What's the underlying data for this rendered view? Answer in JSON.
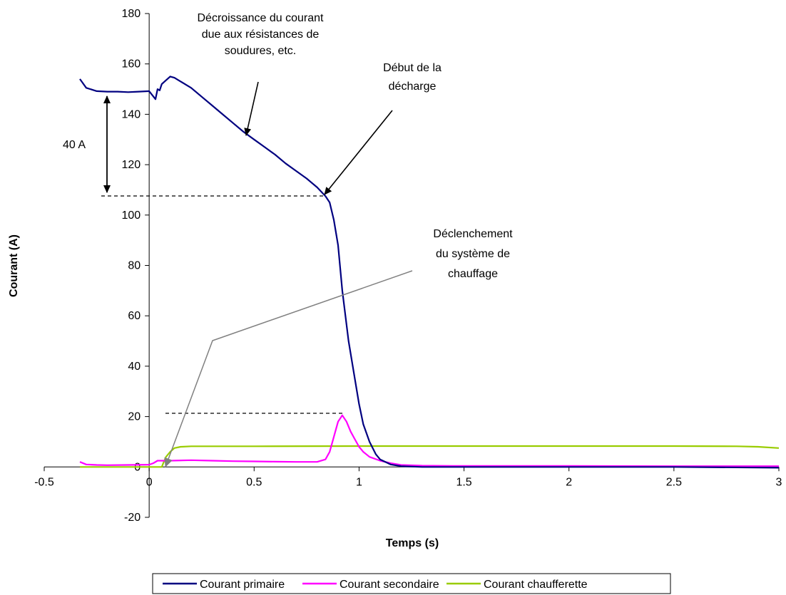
{
  "chart_data": {
    "type": "line",
    "title": "",
    "xlabel": "Temps (s)",
    "ylabel": "Courant (A)",
    "xlim": [
      -0.5,
      3
    ],
    "ylim": [
      -20,
      180
    ],
    "xticks": [
      -0.5,
      0,
      0.5,
      1,
      1.5,
      2,
      2.5,
      3
    ],
    "xtick_labels": [
      "-0.5",
      "0",
      "0.5",
      "1",
      "1.5",
      "2",
      "2.5",
      "3"
    ],
    "yticks": [
      -20,
      0,
      20,
      40,
      60,
      80,
      100,
      120,
      140,
      160,
      180
    ],
    "ytick_labels": [
      "-20",
      "0",
      "20",
      "40",
      "60",
      "80",
      "100",
      "120",
      "140",
      "160",
      "180"
    ],
    "grid": false,
    "legend_position": "bottom",
    "series": [
      {
        "name": "Courant primaire",
        "color": "#000080",
        "x": [
          -0.33,
          -0.3,
          -0.25,
          -0.2,
          -0.15,
          -0.1,
          -0.05,
          0.0,
          0.03,
          0.04,
          0.05,
          0.06,
          0.08,
          0.1,
          0.12,
          0.15,
          0.2,
          0.25,
          0.3,
          0.35,
          0.4,
          0.45,
          0.5,
          0.55,
          0.6,
          0.65,
          0.7,
          0.75,
          0.8,
          0.84,
          0.86,
          0.88,
          0.9,
          0.92,
          0.95,
          0.98,
          1.0,
          1.02,
          1.05,
          1.08,
          1.1,
          1.15,
          1.2,
          1.3,
          1.5,
          2.0,
          2.5,
          3.0
        ],
        "y": [
          154,
          150.5,
          149.2,
          149,
          149,
          148.8,
          149,
          149.2,
          146,
          150,
          149.5,
          152,
          153.5,
          155,
          154.5,
          153,
          150.5,
          147,
          143.5,
          140,
          136.5,
          133,
          130,
          127,
          124,
          120.5,
          117.5,
          114.5,
          111,
          107.5,
          105,
          98,
          88,
          70,
          50,
          35,
          25,
          17,
          10,
          5,
          3,
          1,
          0.3,
          0,
          0,
          0,
          0,
          -0.3
        ]
      },
      {
        "name": "Courant secondaire",
        "color": "#FF00FF",
        "x": [
          -0.33,
          -0.3,
          -0.25,
          -0.2,
          -0.1,
          0.0,
          0.02,
          0.04,
          0.06,
          0.1,
          0.2,
          0.3,
          0.4,
          0.5,
          0.6,
          0.7,
          0.8,
          0.84,
          0.86,
          0.88,
          0.9,
          0.92,
          0.94,
          0.96,
          0.98,
          1.0,
          1.02,
          1.05,
          1.1,
          1.15,
          1.2,
          1.3,
          1.5,
          2.0,
          2.5,
          3.0
        ],
        "y": [
          2,
          1,
          0.8,
          0.7,
          0.8,
          0.9,
          1.5,
          2.5,
          2.5,
          2.5,
          2.7,
          2.5,
          2.3,
          2.2,
          2.1,
          2,
          2,
          3,
          6,
          12,
          18,
          20.5,
          18,
          14,
          11,
          8,
          6,
          4,
          2.5,
          1.5,
          0.8,
          0.5,
          0.4,
          0.4,
          0.3,
          0.3
        ]
      },
      {
        "name": "Courant chaufferette",
        "color": "#99CC00",
        "x": [
          -0.33,
          0.0,
          0.06,
          0.07,
          0.08,
          0.1,
          0.12,
          0.15,
          0.2,
          0.3,
          0.5,
          1.0,
          1.5,
          2.0,
          2.5,
          2.8,
          2.9,
          3.0
        ],
        "y": [
          0,
          0,
          0,
          2,
          4,
          6,
          7.5,
          8,
          8.2,
          8.2,
          8.2,
          8.3,
          8.3,
          8.3,
          8.3,
          8.2,
          8,
          7.5
        ]
      }
    ],
    "annotations": [
      {
        "id": "decroissance",
        "lines": [
          "Décroissance du courant",
          "due aux résistances de",
          "soudures, etc."
        ]
      },
      {
        "id": "debut-decharge",
        "lines": [
          "Début de la",
          "décharge"
        ]
      },
      {
        "id": "declenchement",
        "lines": [
          "Déclenchement",
          "du système de",
          "chauffage"
        ]
      },
      {
        "id": "delta",
        "lines": [
          "40 A"
        ]
      }
    ]
  }
}
